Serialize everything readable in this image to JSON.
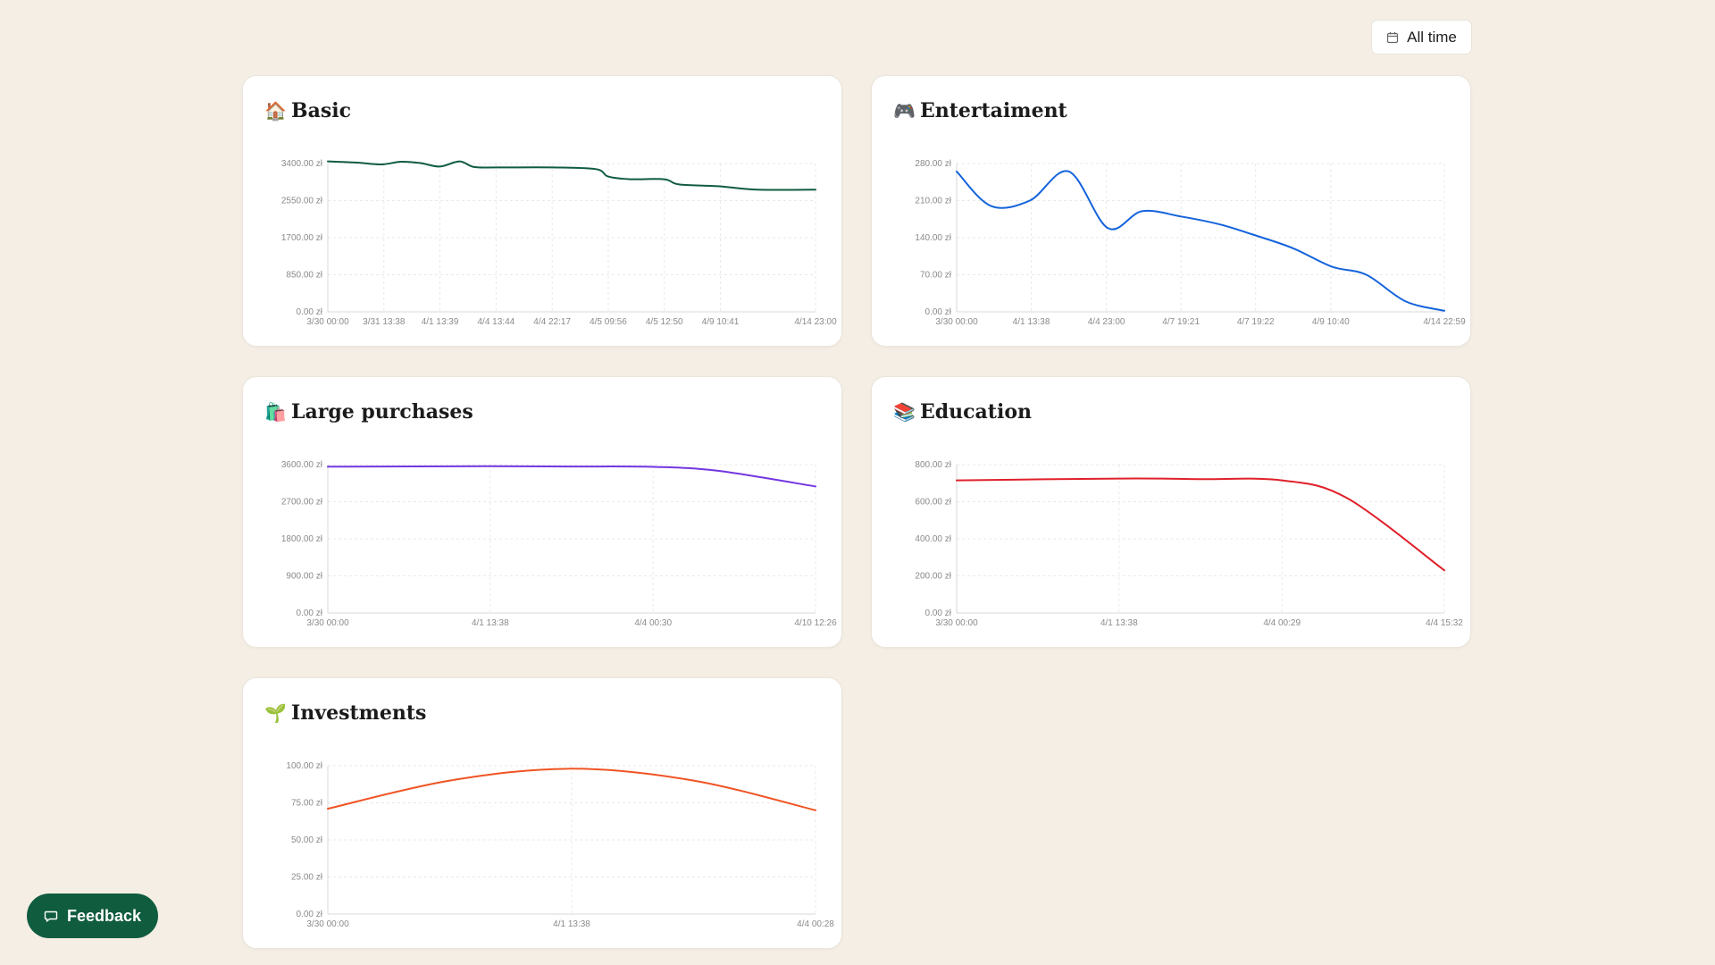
{
  "header": {
    "range_label": "All time",
    "range_icon": "calendar-icon"
  },
  "feedback": {
    "label": "Feedback",
    "icon": "message-icon"
  },
  "chart_data": [
    {
      "id": "basic",
      "title": "Basic",
      "icon": "🏠",
      "type": "line",
      "color": "#0f5c3f",
      "ylim": [
        0,
        3400
      ],
      "y_ticks": [
        "0.00 zł",
        "850.00 zł",
        "1700.00 zł",
        "2550.00 zł",
        "3400.00 zł"
      ],
      "x_ticks": [
        "3/30 00:00",
        "3/31 13:38",
        "4/1 13:39",
        "4/4 13:44",
        "4/4 22:17",
        "4/5 09:56",
        "4/5 12:50",
        "4/9 10:41",
        "4/14 23:00"
      ],
      "x_tick_pos": [
        0,
        0.115,
        0.23,
        0.345,
        0.46,
        0.575,
        0.69,
        0.805,
        1.0
      ],
      "points": [
        [
          0,
          3450
        ],
        [
          0.06,
          3420
        ],
        [
          0.11,
          3380
        ],
        [
          0.15,
          3440
        ],
        [
          0.19,
          3410
        ],
        [
          0.23,
          3330
        ],
        [
          0.27,
          3450
        ],
        [
          0.3,
          3320
        ],
        [
          0.35,
          3310
        ],
        [
          0.46,
          3310
        ],
        [
          0.55,
          3270
        ],
        [
          0.575,
          3100
        ],
        [
          0.62,
          3040
        ],
        [
          0.69,
          3040
        ],
        [
          0.72,
          2920
        ],
        [
          0.8,
          2880
        ],
        [
          0.88,
          2800
        ],
        [
          1.0,
          2800
        ]
      ]
    },
    {
      "id": "entertainment",
      "title": "Entertaiment",
      "icon": "🎮",
      "type": "line",
      "color": "#1463db",
      "ylim": [
        0,
        280
      ],
      "y_ticks": [
        "0.00 zł",
        "70.00 zł",
        "140.00 zł",
        "210.00 zł",
        "280.00 zł"
      ],
      "x_ticks": [
        "3/30 00:00",
        "4/1 13:38",
        "4/4 23:00",
        "4/7 19:21",
        "4/7 19:22",
        "4/9 10:40",
        "4/14 22:59"
      ],
      "x_tick_pos": [
        0,
        0.153,
        0.307,
        0.46,
        0.613,
        0.767,
        1.0
      ],
      "points": [
        [
          0,
          265
        ],
        [
          0.07,
          200
        ],
        [
          0.15,
          210
        ],
        [
          0.23,
          265
        ],
        [
          0.31,
          158
        ],
        [
          0.38,
          190
        ],
        [
          0.46,
          180
        ],
        [
          0.54,
          165
        ],
        [
          0.61,
          145
        ],
        [
          0.69,
          120
        ],
        [
          0.77,
          85
        ],
        [
          0.84,
          70
        ],
        [
          0.92,
          20
        ],
        [
          1.0,
          2
        ]
      ]
    },
    {
      "id": "large-purchases",
      "title": "Large purchases",
      "icon": "🛍️",
      "type": "line",
      "color": "#7436e0",
      "ylim": [
        0,
        3600
      ],
      "y_ticks": [
        "0.00 zł",
        "900.00 zł",
        "1800.00 zł",
        "2700.00 zł",
        "3600.00 zł"
      ],
      "x_ticks": [
        "3/30 00:00",
        "4/1 13:38",
        "4/4 00:30",
        "4/10 12:26"
      ],
      "x_tick_pos": [
        0,
        0.333,
        0.667,
        1.0
      ],
      "points": [
        [
          0,
          3550
        ],
        [
          0.333,
          3560
        ],
        [
          0.5,
          3555
        ],
        [
          0.667,
          3545
        ],
        [
          0.8,
          3450
        ],
        [
          1.0,
          3070
        ]
      ]
    },
    {
      "id": "education",
      "title": "Education",
      "icon": "📚",
      "type": "line",
      "color": "#e0202a",
      "ylim": [
        0,
        800
      ],
      "y_ticks": [
        "0.00 zł",
        "200.00 zł",
        "400.00 zł",
        "600.00 zł",
        "800.00 zł"
      ],
      "x_ticks": [
        "3/30 00:00",
        "4/1 13:38",
        "4/4 00:29",
        "4/4 15:32"
      ],
      "x_tick_pos": [
        0,
        0.333,
        0.667,
        1.0
      ],
      "points": [
        [
          0,
          715
        ],
        [
          0.333,
          725
        ],
        [
          0.5,
          722
        ],
        [
          0.667,
          715
        ],
        [
          0.8,
          620
        ],
        [
          1.0,
          230
        ]
      ]
    },
    {
      "id": "investments",
      "title": "Investments",
      "icon": "🌱",
      "type": "line",
      "color": "#ef5423",
      "ylim": [
        0,
        100
      ],
      "y_ticks": [
        "0.00 zł",
        "25.00 zł",
        "50.00 zł",
        "75.00 zł",
        "100.00 zł"
      ],
      "x_ticks": [
        "3/30 00:00",
        "4/1 13:38",
        "4/4 00:28"
      ],
      "x_tick_pos": [
        0,
        0.5,
        1.0
      ],
      "points": [
        [
          0,
          71
        ],
        [
          0.25,
          90
        ],
        [
          0.5,
          98
        ],
        [
          0.75,
          90
        ],
        [
          1.0,
          70
        ]
      ]
    }
  ]
}
